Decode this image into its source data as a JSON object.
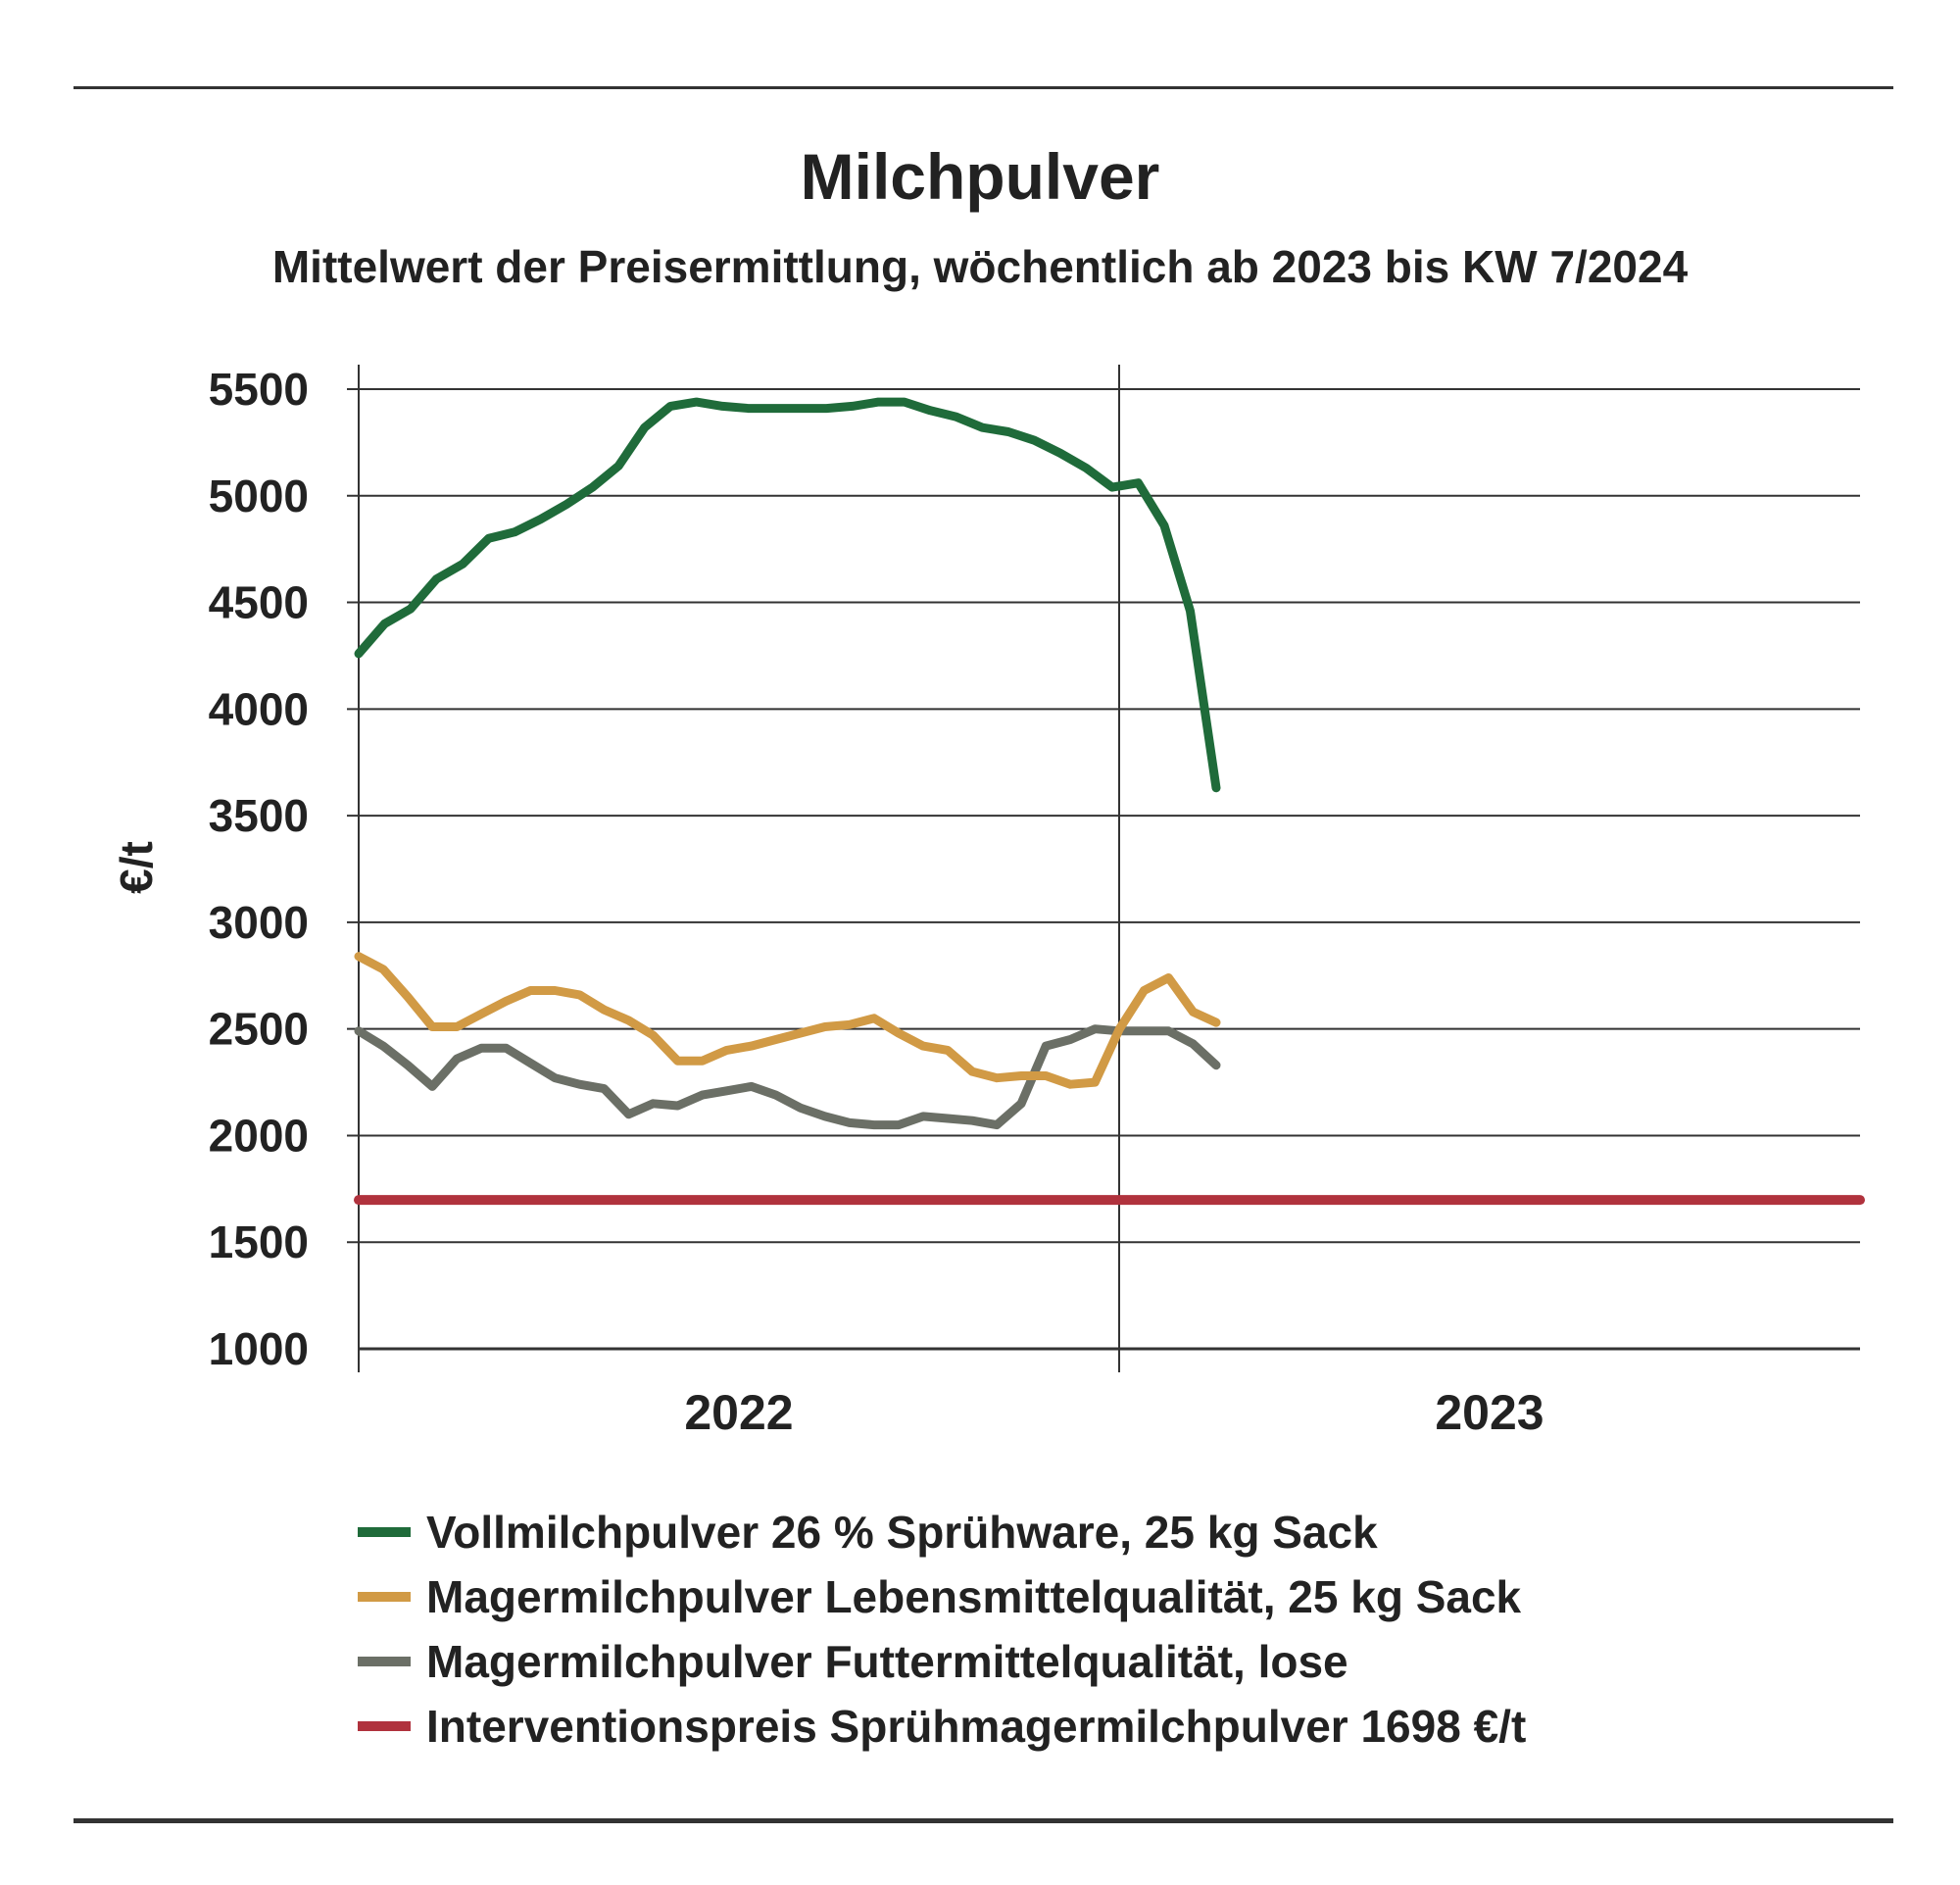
{
  "chart_data": {
    "type": "line",
    "title": "Milchpulver",
    "subtitle": "Mittelwert der Preisermittlung, wöchentlich ab 2023 bis KW 7/2024",
    "ylabel": "€/t",
    "xlabel": "",
    "ylim": [
      1000,
      5500
    ],
    "yticks": [
      "5500",
      "5000",
      "4500",
      "4000",
      "3500",
      "3000",
      "2500",
      "2000",
      "1500",
      "1000"
    ],
    "categories": [
      "2022",
      "2023"
    ],
    "xlim_weeks": [
      0,
      104
    ],
    "grid": true,
    "legend_position": "bottom",
    "series": [
      {
        "name": "Vollmilchpulver 26 % Sprühware, 25 kg Sack",
        "color": "#1f6b3a",
        "x": [
          0,
          1.8,
          3.6,
          5.4,
          7.2,
          9.0,
          10.8,
          12.6,
          14.4,
          16.2,
          18.0,
          19.8,
          21.6,
          23.4,
          25.2,
          27.0,
          28.8,
          30.6,
          32.4,
          34.2,
          36.0,
          37.8,
          39.6,
          41.4,
          43.2,
          45.0,
          46.8,
          48.6,
          50.4,
          52.2,
          54.0,
          55.8,
          57.6,
          59.4
        ],
        "y": [
          4260,
          4400,
          4470,
          4610,
          4680,
          4800,
          4830,
          4890,
          4960,
          5040,
          5140,
          5320,
          5420,
          5440,
          5420,
          5410,
          5410,
          5410,
          5410,
          5420,
          5440,
          5440,
          5400,
          5370,
          5320,
          5300,
          5260,
          5200,
          5130,
          5040,
          5060,
          4860,
          4460,
          3630
        ]
      },
      {
        "name": "Magermilchpulver Lebensmittelqualität, 25 kg Sack",
        "color": "#d19a45",
        "x": [
          0,
          1.7,
          3.4,
          5.1,
          6.8,
          8.5,
          10.2,
          11.9,
          13.6,
          15.3,
          17.0,
          18.7,
          20.4,
          22.1,
          23.8,
          25.5,
          27.2,
          28.9,
          30.6,
          32.3,
          34.0,
          35.7,
          37.4,
          39.1,
          40.8,
          42.5,
          44.2,
          45.9,
          47.6,
          49.3,
          51.0,
          52.7,
          54.4,
          56.1,
          57.8,
          59.4
        ],
        "y": [
          2840,
          2780,
          2650,
          2510,
          2510,
          2570,
          2630,
          2680,
          2680,
          2660,
          2590,
          2540,
          2470,
          2350,
          2350,
          2400,
          2420,
          2450,
          2480,
          2510,
          2520,
          2550,
          2480,
          2420,
          2400,
          2300,
          2270,
          2280,
          2280,
          2240,
          2250,
          2500,
          2680,
          2740,
          2580,
          2530
        ]
      },
      {
        "name": "Magermilchpulver Futtermittelqualität, lose",
        "color": "#6b6f66",
        "x": [
          0,
          1.7,
          3.4,
          5.1,
          6.8,
          8.5,
          10.2,
          11.9,
          13.6,
          15.3,
          17.0,
          18.7,
          20.4,
          22.1,
          23.8,
          25.5,
          27.2,
          28.9,
          30.6,
          32.3,
          34.0,
          35.7,
          37.4,
          39.1,
          40.8,
          42.5,
          44.2,
          45.9,
          47.6,
          49.3,
          51.0,
          52.7,
          54.4,
          56.1,
          57.8,
          59.4
        ],
        "y": [
          2490,
          2420,
          2330,
          2230,
          2360,
          2410,
          2410,
          2340,
          2270,
          2240,
          2220,
          2100,
          2150,
          2140,
          2190,
          2210,
          2230,
          2190,
          2130,
          2090,
          2060,
          2050,
          2050,
          2090,
          2080,
          2070,
          2050,
          2150,
          2420,
          2450,
          2500,
          2490,
          2490,
          2490,
          2430,
          2330
        ]
      },
      {
        "name": "Interventionspreis Sprühmagermilchpulver 1698 €/t",
        "color": "#b0323d",
        "x": [
          0,
          104
        ],
        "y": [
          1698,
          1698
        ]
      }
    ]
  }
}
